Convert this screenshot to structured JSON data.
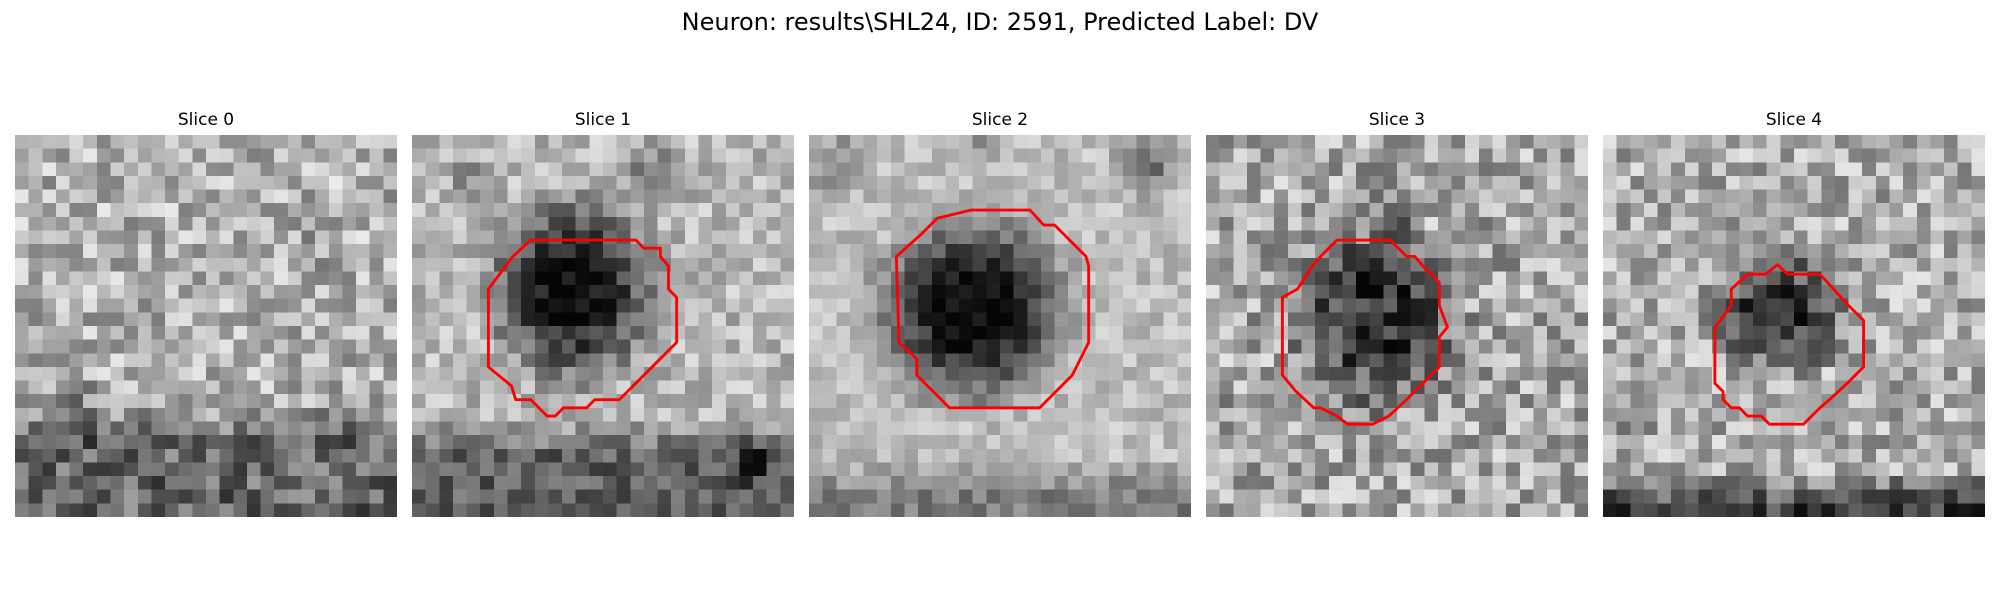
{
  "figure": {
    "title": "Neuron: results\\SHL24, ID: 2591, Predicted Label: DV"
  },
  "panels": [
    {
      "title": "Slice 0",
      "has_contour": false
    },
    {
      "title": "Slice 1",
      "has_contour": true
    },
    {
      "title": "Slice 2",
      "has_contour": true
    },
    {
      "title": "Slice 3",
      "has_contour": true
    },
    {
      "title": "Slice 4",
      "has_contour": true
    }
  ],
  "colors": {
    "contour": "#ff0000",
    "background": "#ffffff"
  },
  "image": {
    "colormap": "grayscale",
    "grid": "28x28 pixel grid"
  }
}
